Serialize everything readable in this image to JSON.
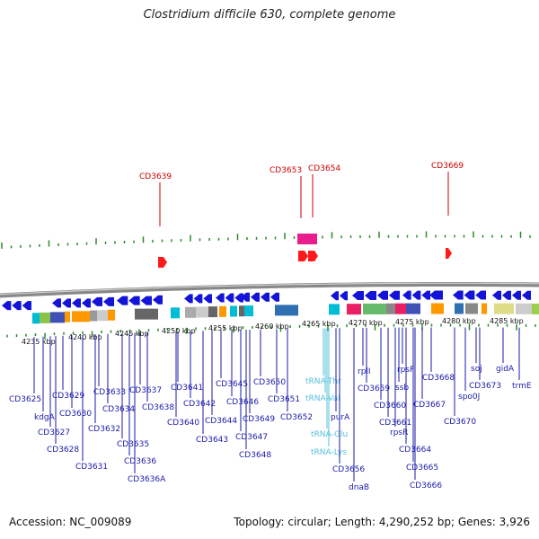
{
  "title": "Clostridium difficile 630, complete genome",
  "footer": {
    "accession": "Accession: NC_009089",
    "summary": "Topology: circular; Length: 4,290,252 bp; Genes: 3,926"
  },
  "scale_labels": [
    "4235 kbp",
    "4240 kbp",
    "4245 kbp",
    "4250 kbp",
    "4255 kbp",
    "4260 kbp",
    "4265 kbp",
    "4270 kbp",
    "4275 kbp",
    "4280 kbp",
    "4285 kbp"
  ],
  "upper_labels": [
    "CD3639",
    "CD3653",
    "CD3654",
    "CD3669"
  ],
  "lower_labels": [
    "CD3625",
    "kdgA",
    "CD3627",
    "CD3628",
    "CD3629",
    "CD3630",
    "CD3631",
    "CD3632",
    "CD3633",
    "CD3634",
    "CD3635",
    "CD3636",
    "CD3636A",
    "CD3637",
    "CD3638",
    "CD3640",
    "CD3641",
    "CD3642",
    "CD3643",
    "CD3644",
    "CD3645",
    "CD3646",
    "CD3647",
    "CD3648",
    "CD3649",
    "CD3650",
    "CD3651",
    "CD3652",
    "tRNA-Thr",
    "tRNA-Val",
    "tRNA-Glu",
    "tRNA-Lys",
    "purA",
    "CD3656",
    "dnaB",
    "rplI",
    "CD3659",
    "CD3660",
    "ssb",
    "rpsF",
    "CD3661",
    "rpsR",
    "CD3664",
    "CD3665",
    "CD3666",
    "CD3667",
    "CD3668",
    "CD3670",
    "spo0J",
    "soj",
    "CD3673",
    "gidA",
    "trmE"
  ],
  "colors": {
    "upper_label": "#cc0000",
    "lower_label": "#1a1aaa",
    "trna_label": "#55c0dd",
    "tick": "#2a8a2a",
    "backbone": "#888888",
    "gene": "#1414d8"
  }
}
